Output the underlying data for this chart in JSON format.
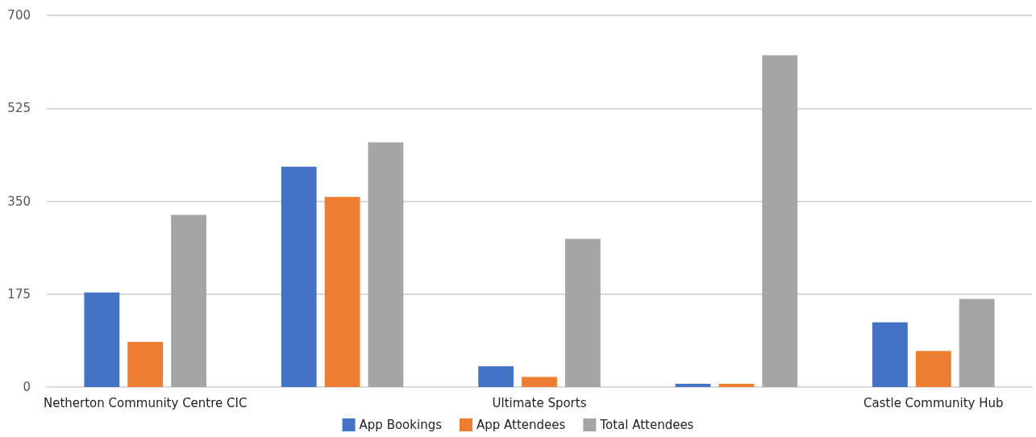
{
  "chart_data": {
    "type": "bar",
    "categories": [
      "Netherton Community Centre CIC",
      null,
      "Ultimate Sports",
      null,
      "Castle Community Hub"
    ],
    "series": [
      {
        "name": "App Bookings",
        "color": "#4472c4",
        "values": [
          178,
          415,
          39,
          6,
          122
        ]
      },
      {
        "name": "App Attendees",
        "color": "#ed7d31",
        "values": [
          85,
          358,
          19,
          6,
          68
        ]
      },
      {
        "name": "Total Attendees",
        "color": "#a5a5a5",
        "values": [
          324,
          461,
          279,
          625,
          166
        ]
      }
    ],
    "ylim": [
      0,
      700
    ],
    "yticks": [
      0,
      175,
      350,
      525,
      700
    ],
    "grid": "y",
    "legend": "bottom"
  }
}
